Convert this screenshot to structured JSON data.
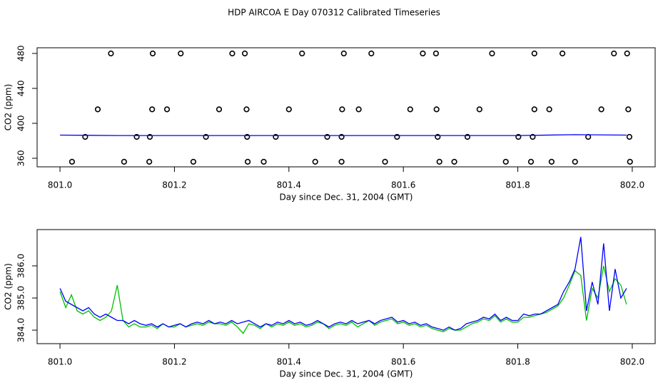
{
  "title": "HDP AIRCOA E  Day 070312  Calibrated Timeseries",
  "chart_data": [
    {
      "type": "scatter",
      "ylabel": "CO2 (ppm)",
      "xlabel": "Day since Dec. 31, 2004 (GMT)",
      "xlim": [
        800.96,
        802.04
      ],
      "ylim": [
        350.2,
        486.5
      ],
      "xticks": [
        {
          "value": 801.0,
          "label": "801.0"
        },
        {
          "value": 801.2,
          "label": "801.2"
        },
        {
          "value": 801.4,
          "label": "801.4"
        },
        {
          "value": 801.6,
          "label": "801.6"
        },
        {
          "value": 801.8,
          "label": "801.8"
        },
        {
          "value": 802.0,
          "label": "802.0"
        }
      ],
      "yticks": [
        360,
        400,
        440,
        480
      ],
      "series": [
        {
          "style": "points",
          "color": "#000000",
          "x": [
            801.089,
            801.162,
            801.211,
            801.301,
            801.323,
            801.423,
            801.496,
            801.544,
            801.634,
            801.657,
            801.755,
            801.829,
            801.878,
            801.968,
            801.991,
            801.066,
            801.161,
            801.187,
            801.278,
            801.326,
            801.4,
            801.493,
            801.522,
            801.612,
            801.658,
            801.733,
            801.829,
            801.855,
            801.946,
            801.993,
            801.044,
            801.134,
            801.157,
            801.255,
            801.327,
            801.377,
            801.467,
            801.492,
            801.589,
            801.66,
            801.712,
            801.801,
            801.826,
            801.923,
            801.995,
            801.021,
            801.112,
            801.156,
            801.233,
            801.328,
            801.356,
            801.446,
            801.492,
            801.568,
            801.663,
            801.689,
            801.779,
            801.823,
            801.859,
            801.9,
            801.996
          ],
          "values": [
            480,
            480,
            480,
            480,
            480,
            480,
            480,
            480,
            480,
            480,
            480,
            480,
            480,
            480,
            480,
            416,
            416,
            416,
            416,
            416,
            416,
            416,
            416,
            416,
            416,
            416,
            416,
            416,
            416,
            416,
            384.5,
            384.5,
            384.5,
            384.5,
            384.5,
            384.5,
            384.5,
            384.5,
            384.5,
            384.5,
            384.5,
            384.5,
            384.5,
            384.5,
            384.5,
            356,
            356,
            356,
            356,
            356,
            356,
            356,
            356,
            356,
            356,
            356,
            356,
            356,
            356,
            356,
            356
          ]
        },
        {
          "style": "line",
          "color": "#0000ff",
          "x": [
            801.0,
            801.1,
            801.2,
            801.3,
            801.4,
            801.5,
            801.6,
            801.7,
            801.8,
            801.9,
            801.99
          ],
          "values": [
            386.5,
            386,
            386,
            386,
            386,
            386,
            386,
            386,
            386,
            387,
            386.5
          ]
        }
      ]
    },
    {
      "type": "line",
      "ylabel": "CO2 (ppm)",
      "xlabel": "Day since Dec. 31, 2004 (GMT)",
      "xlim": [
        800.96,
        802.04
      ],
      "ylim": [
        383.58,
        387.13
      ],
      "xticks": [
        {
          "value": 801.0,
          "label": "801.0"
        },
        {
          "value": 801.2,
          "label": "801.2"
        },
        {
          "value": 801.4,
          "label": "801.4"
        },
        {
          "value": 801.6,
          "label": "801.6"
        },
        {
          "value": 801.8,
          "label": "801.8"
        },
        {
          "value": 802.0,
          "label": "802.0"
        }
      ],
      "yticks": [
        {
          "value": 384,
          "label": "384.0"
        },
        {
          "value": 385,
          "label": "385.0"
        },
        {
          "value": 386,
          "label": "386.0"
        }
      ],
      "x": [
        801.0,
        801.01,
        801.02,
        801.03,
        801.04,
        801.05,
        801.06,
        801.07,
        801.08,
        801.09,
        801.1,
        801.11,
        801.12,
        801.13,
        801.14,
        801.15,
        801.16,
        801.17,
        801.18,
        801.19,
        801.2,
        801.21,
        801.22,
        801.23,
        801.24,
        801.25,
        801.26,
        801.27,
        801.28,
        801.29,
        801.3,
        801.31,
        801.32,
        801.33,
        801.34,
        801.35,
        801.36,
        801.37,
        801.38,
        801.39,
        801.4,
        801.41,
        801.42,
        801.43,
        801.44,
        801.45,
        801.46,
        801.47,
        801.48,
        801.49,
        801.5,
        801.51,
        801.52,
        801.53,
        801.54,
        801.55,
        801.56,
        801.57,
        801.58,
        801.59,
        801.6,
        801.61,
        801.62,
        801.63,
        801.64,
        801.65,
        801.66,
        801.67,
        801.68,
        801.69,
        801.7,
        801.71,
        801.72,
        801.73,
        801.74,
        801.75,
        801.76,
        801.77,
        801.78,
        801.79,
        801.8,
        801.81,
        801.82,
        801.83,
        801.84,
        801.85,
        801.86,
        801.87,
        801.88,
        801.89,
        801.9,
        801.91,
        801.92,
        801.93,
        801.94,
        801.95,
        801.96,
        801.97,
        801.98,
        801.99
      ],
      "series": [
        {
          "color": "#00c000",
          "values": [
            385.2,
            384.7,
            385.1,
            384.6,
            384.5,
            384.6,
            384.4,
            384.3,
            384.4,
            384.6,
            385.4,
            384.3,
            384.1,
            384.2,
            384.1,
            384.1,
            384.15,
            384.05,
            384.2,
            384.1,
            384.1,
            384.2,
            384.1,
            384.15,
            384.2,
            384.15,
            384.25,
            384.2,
            384.2,
            384.15,
            384.25,
            384.1,
            383.9,
            384.2,
            384.15,
            384.05,
            384.2,
            384.1,
            384.2,
            384.15,
            384.25,
            384.15,
            384.2,
            384.1,
            384.15,
            384.25,
            384.2,
            384.05,
            384.15,
            384.2,
            384.15,
            384.25,
            384.1,
            384.2,
            384.3,
            384.15,
            384.25,
            384.3,
            384.35,
            384.2,
            384.25,
            384.15,
            384.2,
            384.1,
            384.15,
            384.05,
            384.0,
            383.95,
            384.05,
            384.0,
            384.0,
            384.1,
            384.2,
            384.25,
            384.35,
            384.3,
            384.45,
            384.25,
            384.35,
            384.25,
            384.25,
            384.4,
            384.4,
            384.45,
            384.5,
            384.55,
            384.65,
            384.75,
            385.0,
            385.4,
            385.85,
            385.7,
            384.3,
            385.3,
            385.0,
            386.0,
            385.2,
            385.6,
            385.4,
            384.8
          ]
        },
        {
          "color": "#0000ff",
          "values": [
            385.3,
            384.9,
            384.8,
            384.7,
            384.6,
            384.7,
            384.5,
            384.4,
            384.5,
            384.4,
            384.3,
            384.3,
            384.2,
            384.3,
            384.2,
            384.15,
            384.2,
            384.1,
            384.2,
            384.1,
            384.15,
            384.2,
            384.1,
            384.2,
            384.25,
            384.2,
            384.3,
            384.2,
            384.25,
            384.2,
            384.3,
            384.2,
            384.25,
            384.3,
            384.2,
            384.1,
            384.2,
            384.15,
            384.25,
            384.2,
            384.3,
            384.2,
            384.25,
            384.15,
            384.2,
            384.3,
            384.2,
            384.1,
            384.2,
            384.25,
            384.2,
            384.3,
            384.2,
            384.25,
            384.3,
            384.2,
            384.3,
            384.35,
            384.4,
            384.25,
            384.3,
            384.2,
            384.25,
            384.15,
            384.2,
            384.1,
            384.05,
            384.0,
            384.1,
            384.0,
            384.05,
            384.2,
            384.25,
            384.3,
            384.4,
            384.35,
            384.5,
            384.3,
            384.4,
            384.3,
            384.3,
            384.5,
            384.45,
            384.5,
            384.5,
            384.6,
            384.7,
            384.8,
            385.2,
            385.5,
            385.9,
            386.9,
            384.6,
            385.5,
            384.8,
            386.7,
            384.6,
            385.9,
            385.0,
            385.3
          ]
        }
      ]
    }
  ]
}
